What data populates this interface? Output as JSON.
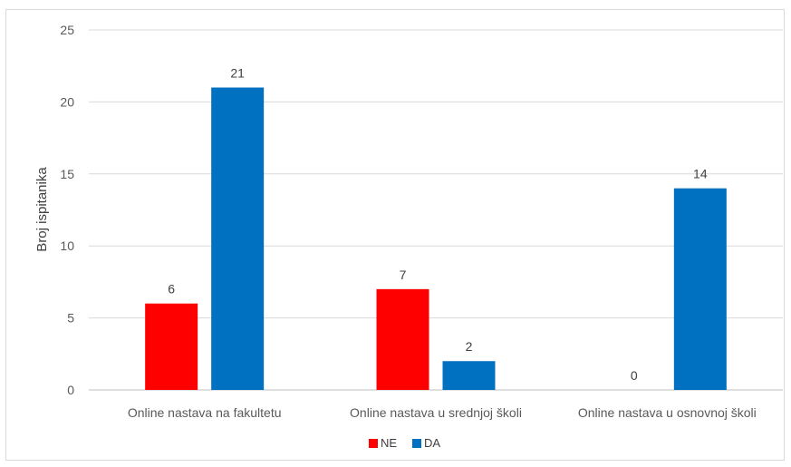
{
  "chart_data": {
    "type": "bar",
    "categories": [
      "Online nastava na fakultetu",
      "Online nastava u srednjoj školi",
      "Online nastava u osnovnoj školi"
    ],
    "series": [
      {
        "name": "NE",
        "color": "#ff0000",
        "values": [
          6,
          7,
          0
        ]
      },
      {
        "name": "DA",
        "color": "#0070c0",
        "values": [
          21,
          2,
          14
        ]
      }
    ],
    "ylabel": "Broj ispitanika",
    "xlabel": "",
    "ylim": [
      0,
      25
    ],
    "yticks": [
      0,
      5,
      10,
      15,
      20,
      25
    ],
    "grid": true,
    "legend": "bottom-center",
    "data_labels": true
  }
}
